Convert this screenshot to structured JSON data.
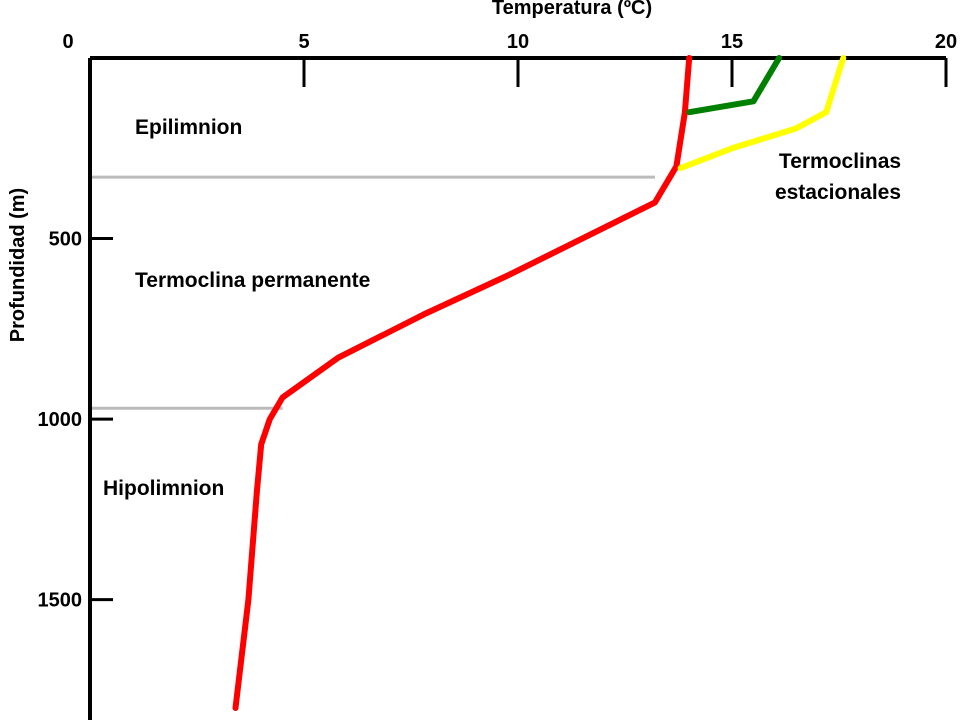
{
  "chart_data": {
    "type": "line",
    "xlabel": "Temperatura (ºC)",
    "ylabel": "Profundidad (m)",
    "xlim": [
      0,
      20
    ],
    "ylim": [
      1800,
      0
    ],
    "x_axis_position": "top",
    "y_inverted": true,
    "x_ticks": [
      0,
      5,
      10,
      15,
      20
    ],
    "y_ticks": [
      0,
      500,
      1000,
      1500
    ],
    "grid": false,
    "legend": "none",
    "series": [
      {
        "color": "#ff0000",
        "points": [
          [
            14.0,
            0
          ],
          [
            13.9,
            150
          ],
          [
            13.7,
            300
          ],
          [
            13.2,
            400
          ],
          [
            11.5,
            500
          ],
          [
            9.8,
            600
          ],
          [
            7.8,
            710
          ],
          [
            5.8,
            830
          ],
          [
            4.5,
            940
          ],
          [
            4.2,
            1000
          ],
          [
            4.0,
            1070
          ],
          [
            3.9,
            1200
          ],
          [
            3.7,
            1500
          ],
          [
            3.4,
            1800
          ]
        ]
      },
      {
        "color": "#008000",
        "points": [
          [
            16.1,
            0
          ],
          [
            15.5,
            120
          ],
          [
            14.0,
            150
          ]
        ]
      },
      {
        "color": "#ffff00",
        "points": [
          [
            17.6,
            0
          ],
          [
            17.2,
            150
          ],
          [
            16.5,
            195
          ],
          [
            15.0,
            250
          ],
          [
            13.8,
            305
          ]
        ]
      }
    ],
    "reference_lines": [
      {
        "depth": 330,
        "x_from": 0,
        "x_to": 13.2
      },
      {
        "depth": 970,
        "x_from": 0,
        "x_to": 4.5
      }
    ],
    "annotations": [
      {
        "id": "epi",
        "text": "Epilimnion"
      },
      {
        "id": "perm",
        "text": "Termoclina permanente"
      },
      {
        "id": "hipo",
        "text": "Hipolimnion"
      },
      {
        "id": "est1",
        "text": "Termoclinas"
      },
      {
        "id": "est2",
        "text": "estacionales"
      }
    ]
  }
}
